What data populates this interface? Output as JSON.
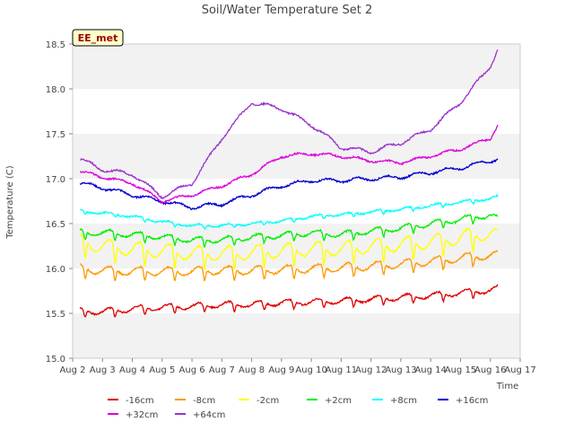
{
  "chart_data": {
    "type": "line",
    "title": "Soil/Water Temperature Set 2",
    "xlabel": "Time",
    "ylabel": "Temperature (C)",
    "badge": "EE_met",
    "x_ticks": [
      "Aug 2",
      "Aug 3",
      "Aug 4",
      "Aug 5",
      "Aug 6",
      "Aug 7",
      "Aug 8",
      "Aug 9",
      "Aug 10",
      "Aug 11",
      "Aug 12",
      "Aug 13",
      "Aug 14",
      "Aug 15",
      "Aug 16",
      "Aug 17"
    ],
    "y_ticks": [
      "15.0",
      "15.5",
      "16.0",
      "16.5",
      "17.0",
      "17.5",
      "18.0",
      "18.5"
    ],
    "xlim": [
      0,
      15
    ],
    "ylim": [
      15.0,
      18.5
    ],
    "x": [
      0.25,
      1.0,
      2.0,
      3.0,
      4.0,
      5.0,
      6.0,
      7.0,
      8.0,
      9.0,
      10.0,
      11.0,
      12.0,
      13.0,
      14.0,
      14.25
    ],
    "series": [
      {
        "name": "-16cm",
        "color": "#dd0000",
        "values": [
          15.53,
          15.52,
          15.55,
          15.57,
          15.58,
          15.6,
          15.6,
          15.62,
          15.63,
          15.64,
          15.66,
          15.68,
          15.7,
          15.73,
          15.76,
          15.78
        ]
      },
      {
        "name": "-8cm",
        "color": "#ff9900",
        "values": [
          16.0,
          15.98,
          15.97,
          15.97,
          15.97,
          15.98,
          15.98,
          15.99,
          16.0,
          16.01,
          16.03,
          16.05,
          16.08,
          16.12,
          16.15,
          16.15
        ]
      },
      {
        "name": "-2cm",
        "color": "#ffff00",
        "values": [
          16.3,
          16.25,
          16.22,
          16.2,
          16.17,
          16.17,
          16.18,
          16.2,
          16.22,
          16.22,
          16.25,
          16.27,
          16.3,
          16.35,
          16.4,
          16.36
        ]
      },
      {
        "name": "+2cm",
        "color": "#00ee00",
        "values": [
          16.4,
          16.4,
          16.38,
          16.35,
          16.32,
          16.32,
          16.35,
          16.37,
          16.4,
          16.38,
          16.42,
          16.45,
          16.5,
          16.55,
          16.6,
          16.55
        ]
      },
      {
        "name": "+8cm",
        "color": "#00ffff",
        "values": [
          16.64,
          16.62,
          16.58,
          16.52,
          16.48,
          16.48,
          16.5,
          16.53,
          16.58,
          16.6,
          16.63,
          16.66,
          16.7,
          16.74,
          16.78,
          16.8
        ]
      },
      {
        "name": "+16cm",
        "color": "#0000cc",
        "values": [
          16.95,
          16.9,
          16.82,
          16.75,
          16.68,
          16.72,
          16.82,
          16.92,
          16.98,
          16.98,
          17.0,
          17.02,
          17.07,
          17.12,
          17.2,
          17.22
        ]
      },
      {
        "name": "+32cm",
        "color": "#dd00dd",
        "values": [
          17.08,
          17.02,
          16.95,
          16.75,
          16.82,
          16.92,
          17.05,
          17.25,
          17.28,
          17.25,
          17.2,
          17.18,
          17.25,
          17.33,
          17.45,
          17.6
        ]
      },
      {
        "name": "+64cm",
        "color": "#9933cc",
        "values": [
          17.22,
          17.1,
          17.05,
          16.8,
          16.95,
          17.45,
          17.85,
          17.78,
          17.6,
          17.35,
          17.3,
          17.4,
          17.55,
          17.85,
          18.25,
          18.45
        ]
      }
    ],
    "grid": "horizontal bands",
    "legend_placement": "bottom"
  }
}
